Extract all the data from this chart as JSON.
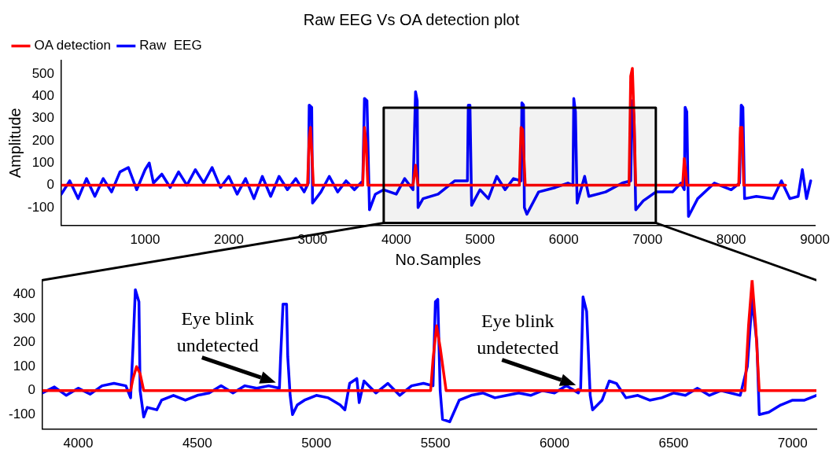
{
  "chart_data": [
    {
      "type": "line",
      "title": "Raw EEG Vs OA detection plot",
      "xlabel": "No.Samples",
      "ylabel": "Amplitude",
      "xlim": [
        0,
        9000
      ],
      "xticks": [
        1000,
        2000,
        3000,
        4000,
        5000,
        6000,
        7000,
        8000,
        9000
      ],
      "ylim": [
        -180,
        560
      ],
      "yticks": [
        -100,
        0,
        100,
        200,
        300,
        400,
        500
      ],
      "grid": false,
      "legend": "top left",
      "marker": "none",
      "line_style": "solid",
      "bands": [
        {
          "axis": "x",
          "from": 3850,
          "to": 7100,
          "color": "#000000"
        }
      ],
      "series": [
        {
          "name": "Raw  EEG",
          "color": "#0000ff",
          "x": [
            0,
            100,
            200,
            300,
            400,
            500,
            600,
            700,
            800,
            900,
            1000,
            1050,
            1100,
            1200,
            1300,
            1400,
            1500,
            1600,
            1700,
            1800,
            1900,
            2000,
            2100,
            2200,
            2300,
            2400,
            2500,
            2600,
            2700,
            2800,
            2900,
            2950,
            2960,
            2990,
            3000,
            3100,
            3200,
            3300,
            3400,
            3500,
            3600,
            3620,
            3650,
            3680,
            3750,
            3850,
            4000,
            4100,
            4200,
            4230,
            4250,
            4260,
            4320,
            4500,
            4700,
            4850,
            4860,
            4880,
            4900,
            5000,
            5100,
            5200,
            5300,
            5400,
            5490,
            5500,
            5520,
            5530,
            5560,
            5700,
            5900,
            6050,
            6110,
            6120,
            6140,
            6160,
            6250,
            6300,
            6500,
            6700,
            6800,
            6820,
            6840,
            6860,
            6950,
            7100,
            7300,
            7400,
            7440,
            7450,
            7470,
            7490,
            7600,
            7800,
            8000,
            8100,
            8120,
            8140,
            8160,
            8300,
            8500,
            8600,
            8700,
            8800,
            8850,
            8900,
            8950
          ],
          "values": [
            -40,
            20,
            -60,
            30,
            -50,
            30,
            -30,
            60,
            80,
            -20,
            70,
            100,
            10,
            50,
            -10,
            60,
            0,
            70,
            10,
            80,
            -10,
            40,
            -40,
            30,
            -60,
            40,
            -50,
            40,
            -20,
            30,
            -30,
            10,
            360,
            350,
            -80,
            -30,
            40,
            -30,
            20,
            -20,
            20,
            390,
            380,
            -110,
            -40,
            -20,
            -40,
            30,
            -20,
            420,
            380,
            -100,
            -60,
            -40,
            20,
            20,
            360,
            360,
            -90,
            -20,
            -60,
            40,
            -20,
            30,
            20,
            370,
            360,
            -100,
            -130,
            -30,
            -10,
            10,
            0,
            390,
            330,
            -80,
            40,
            -50,
            -30,
            10,
            20,
            380,
            300,
            -110,
            -70,
            -30,
            -30,
            10,
            -20,
            350,
            330,
            -140,
            -60,
            10,
            -20,
            10,
            360,
            350,
            -60,
            -50,
            -60,
            20,
            -60,
            -50,
            70,
            -60,
            20
          ]
        },
        {
          "name": "OA detection",
          "color": "#ff0000",
          "x": [
            0,
            2940,
            2960,
            2975,
            2990,
            3010,
            3600,
            3620,
            3640,
            3660,
            4200,
            4230,
            4260,
            5470,
            5490,
            5510,
            5540,
            6780,
            6800,
            6820,
            6840,
            6860,
            7420,
            7440,
            7460,
            7470,
            8090,
            8110,
            8130,
            8150,
            8650
          ],
          "values": [
            0,
            0,
            210,
            260,
            160,
            0,
            0,
            260,
            190,
            0,
            0,
            90,
            0,
            0,
            260,
            250,
            0,
            0,
            490,
            525,
            300,
            0,
            0,
            120,
            50,
            0,
            0,
            260,
            260,
            0,
            0
          ]
        }
      ]
    },
    {
      "type": "line",
      "xlim": [
        3850,
        7100
      ],
      "xticks": [
        4000,
        4500,
        5000,
        5500,
        6000,
        6500,
        7000
      ],
      "ylim": [
        -160,
        460
      ],
      "yticks": [
        -100,
        0,
        100,
        200,
        300,
        400
      ],
      "grid": false,
      "marker": "none",
      "line_style": "solid",
      "annotations": [
        {
          "text": "Eye blink\nundetected",
          "x": 4850,
          "y": 20
        },
        {
          "text": "Eye blink\nundetected",
          "x": 6110,
          "y": 10
        }
      ],
      "series": [
        {
          "color": "#0000ff",
          "x": [
            3850,
            3900,
            3950,
            4000,
            4050,
            4100,
            4150,
            4200,
            4220,
            4230,
            4240,
            4255,
            4260,
            4275,
            4290,
            4330,
            4350,
            4400,
            4450,
            4500,
            4550,
            4600,
            4650,
            4700,
            4750,
            4800,
            4845,
            4850,
            4860,
            4875,
            4880,
            4890,
            4900,
            4920,
            4950,
            5000,
            5050,
            5100,
            5120,
            5140,
            5170,
            5180,
            5200,
            5250,
            5300,
            5350,
            5400,
            5450,
            5490,
            5500,
            5510,
            5520,
            5530,
            5560,
            5600,
            5650,
            5700,
            5750,
            5800,
            5850,
            5900,
            5950,
            6000,
            6050,
            6100,
            6110,
            6120,
            6135,
            6150,
            6160,
            6200,
            6230,
            6260,
            6300,
            6350,
            6400,
            6450,
            6500,
            6550,
            6600,
            6650,
            6700,
            6780,
            6810,
            6830,
            6850,
            6860,
            6900,
            6950,
            7000,
            7050,
            7100
          ],
          "values": [
            -10,
            15,
            -20,
            10,
            -15,
            20,
            30,
            20,
            -30,
            180,
            420,
            370,
            0,
            -110,
            -70,
            -80,
            -40,
            -20,
            -40,
            -20,
            -10,
            20,
            -10,
            20,
            10,
            20,
            10,
            140,
            360,
            360,
            140,
            -20,
            -100,
            -60,
            -40,
            -20,
            -30,
            -60,
            -80,
            30,
            50,
            -50,
            40,
            -10,
            30,
            -20,
            20,
            30,
            20,
            370,
            380,
            0,
            -120,
            -130,
            -40,
            -20,
            -10,
            -30,
            -20,
            -10,
            -20,
            0,
            -10,
            20,
            -10,
            10,
            390,
            330,
            -20,
            -80,
            -40,
            40,
            30,
            -30,
            -20,
            -40,
            -30,
            -10,
            -20,
            10,
            -20,
            0,
            -20,
            100,
            380,
            200,
            -100,
            -90,
            -60,
            -40,
            -40,
            -20
          ]
        },
        {
          "color": "#ff0000",
          "x": [
            3850,
            4220,
            4230,
            4245,
            4260,
            4275,
            5480,
            5490,
            5505,
            5520,
            5545,
            6090,
            6100,
            6110,
            6800,
            6815,
            6830,
            6845,
            6860,
            7100
          ],
          "values": [
            0,
            0,
            50,
            100,
            70,
            0,
            0,
            130,
            270,
            180,
            0,
            0,
            5,
            0,
            0,
            270,
            460,
            270,
            0,
            0
          ]
        }
      ]
    }
  ]
}
